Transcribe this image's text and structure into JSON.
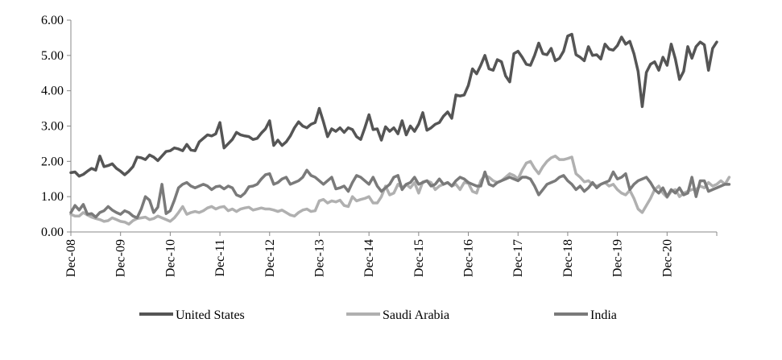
{
  "chart_data": {
    "type": "line",
    "title": "",
    "xlabel": "",
    "ylabel": "",
    "ylim": [
      0,
      6
    ],
    "y_ticks": [
      "0.00",
      "1.00",
      "2.00",
      "3.00",
      "4.00",
      "5.00",
      "6.00"
    ],
    "x_tick_labels": [
      "Dec-08",
      "Dec-09",
      "Dec-10",
      "Dec-11",
      "Dec-12",
      "Dec-13",
      "Dec-14",
      "Dec-15",
      "Dec-16",
      "Dec-17",
      "Dec-18",
      "Dec-19",
      "Dec-20"
    ],
    "x_start": "Dec-08",
    "legend_position": "bottom",
    "grid": false,
    "series": [
      {
        "name": "United States",
        "color": "#555555",
        "values": [
          1.68,
          1.7,
          1.58,
          1.63,
          1.72,
          1.8,
          1.75,
          2.15,
          1.85,
          1.88,
          1.93,
          1.8,
          1.72,
          1.62,
          1.72,
          1.85,
          2.12,
          2.1,
          2.05,
          2.18,
          2.12,
          2.02,
          2.15,
          2.28,
          2.3,
          2.38,
          2.35,
          2.3,
          2.48,
          2.32,
          2.3,
          2.55,
          2.65,
          2.75,
          2.72,
          2.78,
          3.1,
          2.38,
          2.5,
          2.62,
          2.82,
          2.75,
          2.72,
          2.7,
          2.62,
          2.65,
          2.8,
          2.92,
          3.15,
          2.45,
          2.6,
          2.45,
          2.55,
          2.72,
          2.95,
          3.12,
          3.0,
          2.95,
          3.05,
          3.1,
          3.5,
          3.12,
          2.7,
          2.92,
          2.85,
          2.95,
          2.82,
          2.95,
          2.9,
          2.7,
          2.62,
          2.95,
          3.32,
          2.9,
          2.92,
          2.6,
          2.98,
          2.85,
          2.95,
          2.78,
          3.15,
          2.75,
          3.0,
          2.85,
          3.05,
          3.38,
          2.88,
          2.95,
          3.05,
          3.1,
          3.28,
          3.4,
          3.22,
          3.88,
          3.85,
          3.88,
          4.15,
          4.62,
          4.48,
          4.72,
          5.0,
          4.62,
          4.58,
          4.88,
          4.82,
          4.42,
          4.25,
          5.05,
          5.12,
          4.95,
          4.75,
          4.72,
          5.0,
          5.35,
          5.05,
          5.02,
          5.2,
          4.85,
          4.92,
          5.12,
          5.55,
          5.6,
          5.02,
          4.95,
          4.85,
          5.25,
          5.0,
          5.02,
          4.9,
          5.32,
          5.18,
          5.15,
          5.28,
          5.52,
          5.32,
          5.4,
          5.05,
          4.55,
          3.55,
          4.52,
          4.75,
          4.82,
          4.58,
          4.95,
          4.72,
          5.32,
          4.9,
          4.32,
          4.55,
          5.25,
          4.92,
          5.25,
          5.38,
          5.3,
          4.58,
          5.2,
          5.38
        ]
      },
      {
        "name": "Saudi Arabia",
        "color": "#b0b0b0",
        "values": [
          0.5,
          0.45,
          0.45,
          0.55,
          0.48,
          0.42,
          0.38,
          0.35,
          0.3,
          0.32,
          0.4,
          0.35,
          0.3,
          0.28,
          0.22,
          0.32,
          0.38,
          0.4,
          0.42,
          0.35,
          0.38,
          0.45,
          0.4,
          0.35,
          0.3,
          0.4,
          0.55,
          0.72,
          0.5,
          0.55,
          0.58,
          0.55,
          0.6,
          0.68,
          0.72,
          0.65,
          0.7,
          0.72,
          0.6,
          0.65,
          0.58,
          0.65,
          0.68,
          0.7,
          0.62,
          0.65,
          0.68,
          0.65,
          0.65,
          0.62,
          0.58,
          0.62,
          0.55,
          0.48,
          0.45,
          0.55,
          0.62,
          0.65,
          0.58,
          0.6,
          0.88,
          0.92,
          0.82,
          0.88,
          0.85,
          0.9,
          0.75,
          0.72,
          1.0,
          0.88,
          0.92,
          0.95,
          1.0,
          0.82,
          0.82,
          1.0,
          1.3,
          1.05,
          1.1,
          1.35,
          1.25,
          1.35,
          1.25,
          1.4,
          1.1,
          1.42,
          1.45,
          1.4,
          1.2,
          1.3,
          1.35,
          1.4,
          1.3,
          1.35,
          1.2,
          1.4,
          1.38,
          1.15,
          1.1,
          1.45,
          1.6,
          1.55,
          1.45,
          1.4,
          1.45,
          1.55,
          1.65,
          1.6,
          1.5,
          1.75,
          1.95,
          2.0,
          1.8,
          1.65,
          1.85,
          2.0,
          2.1,
          2.15,
          2.05,
          2.05,
          2.08,
          2.12,
          1.65,
          1.55,
          1.42,
          1.45,
          1.35,
          1.3,
          1.35,
          1.4,
          1.3,
          1.35,
          1.2,
          1.1,
          1.05,
          1.18,
          0.95,
          0.65,
          0.55,
          0.75,
          0.95,
          1.2,
          1.3,
          1.1,
          0.98,
          1.15,
          1.2,
          1.0,
          1.1,
          1.15,
          1.2,
          1.2,
          1.3,
          1.25,
          1.4,
          1.3,
          1.35,
          1.45,
          1.35,
          1.55
        ]
      },
      {
        "name": "India",
        "color": "#7a7a7a",
        "values": [
          0.55,
          0.75,
          0.62,
          0.78,
          0.5,
          0.52,
          0.42,
          0.55,
          0.6,
          0.72,
          0.62,
          0.55,
          0.5,
          0.6,
          0.55,
          0.45,
          0.4,
          0.65,
          1.0,
          0.9,
          0.55,
          0.7,
          1.35,
          0.52,
          0.6,
          0.9,
          1.25,
          1.35,
          1.4,
          1.3,
          1.25,
          1.3,
          1.35,
          1.3,
          1.2,
          1.28,
          1.3,
          1.22,
          1.3,
          1.25,
          1.05,
          1.0,
          1.1,
          1.28,
          1.3,
          1.35,
          1.5,
          1.62,
          1.65,
          1.35,
          1.4,
          1.5,
          1.55,
          1.35,
          1.4,
          1.45,
          1.55,
          1.75,
          1.6,
          1.55,
          1.45,
          1.35,
          1.45,
          1.55,
          1.22,
          1.25,
          1.3,
          1.15,
          1.4,
          1.6,
          1.55,
          1.45,
          1.35,
          1.55,
          1.3,
          1.15,
          1.25,
          1.35,
          1.55,
          1.6,
          1.2,
          1.35,
          1.4,
          1.55,
          1.35,
          1.4,
          1.45,
          1.3,
          1.35,
          1.5,
          1.35,
          1.4,
          1.3,
          1.45,
          1.55,
          1.5,
          1.4,
          1.35,
          1.3,
          1.3,
          1.7,
          1.35,
          1.3,
          1.4,
          1.45,
          1.5,
          1.55,
          1.5,
          1.45,
          1.55,
          1.55,
          1.5,
          1.3,
          1.05,
          1.2,
          1.35,
          1.4,
          1.45,
          1.55,
          1.6,
          1.45,
          1.35,
          1.2,
          1.3,
          1.15,
          1.25,
          1.4,
          1.25,
          1.35,
          1.4,
          1.45,
          1.7,
          1.5,
          1.55,
          1.65,
          1.2,
          1.35,
          1.45,
          1.5,
          1.55,
          1.4,
          1.2,
          1.1,
          1.25,
          1.0,
          1.2,
          1.1,
          1.25,
          1.05,
          1.1,
          1.55,
          1.0,
          1.45,
          1.45,
          1.15,
          1.2,
          1.25,
          1.3,
          1.35,
          1.35
        ]
      }
    ]
  }
}
